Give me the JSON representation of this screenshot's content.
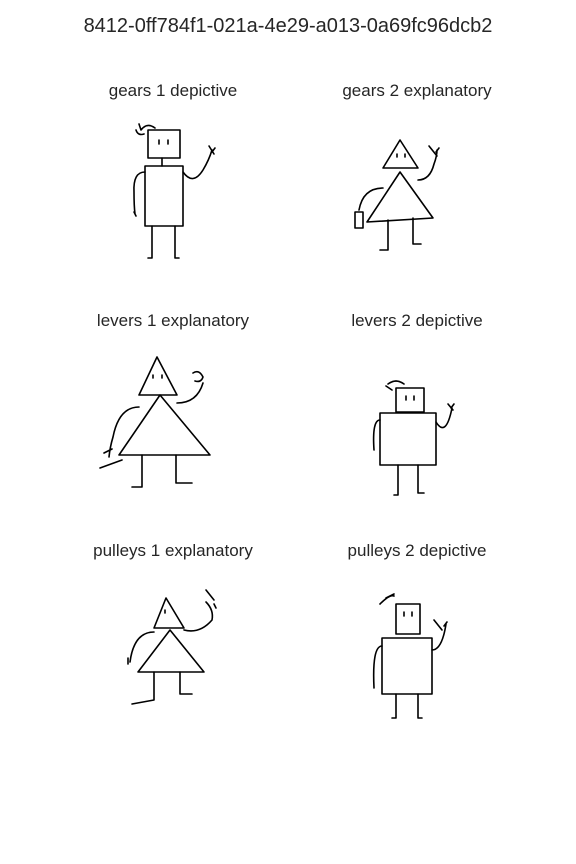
{
  "title": "8412-0ff784f1-021a-4e29-a013-0a69fc96dcb2",
  "panels": [
    {
      "label": "gears 1 depictive",
      "figure": "rectangle-body-figure"
    },
    {
      "label": "gears 2 explanatory",
      "figure": "triangle-body-figure"
    },
    {
      "label": "levers 1 explanatory",
      "figure": "triangle-body-figure"
    },
    {
      "label": "levers 2 depictive",
      "figure": "rectangle-body-figure"
    },
    {
      "label": "pulleys 1 explanatory",
      "figure": "triangle-body-figure"
    },
    {
      "label": "pulleys 2 depictive",
      "figure": "rectangle-body-figure"
    }
  ]
}
